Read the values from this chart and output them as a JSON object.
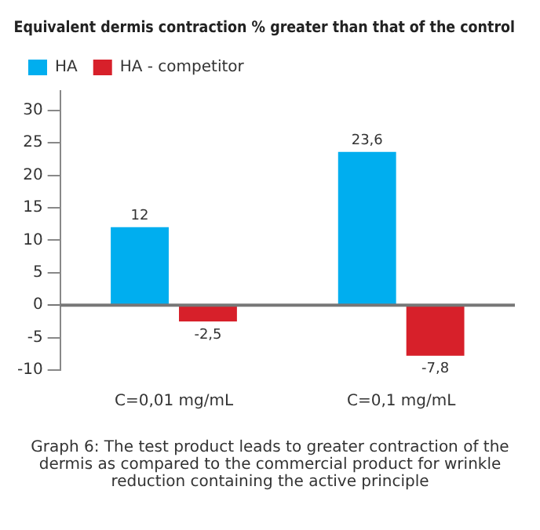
{
  "chart_data": {
    "type": "bar",
    "title": "Equivalent dermis contraction % greater than that of the control",
    "categories": [
      "C=0,01 mg/mL",
      "C=0,1 mg/mL"
    ],
    "series": [
      {
        "name": "HA",
        "color": "#00aeef",
        "values": [
          12,
          23.6
        ],
        "value_labels": [
          "12",
          "23,6"
        ]
      },
      {
        "name": "HA - competitor",
        "color": "#d7202a",
        "values": [
          -2.5,
          -7.8
        ],
        "value_labels": [
          "-2,5",
          "-7,8"
        ]
      }
    ],
    "ref_lines": [
      {
        "axis": "y",
        "value": 0,
        "color": "#777777"
      }
    ],
    "ylim": [
      -10,
      33
    ],
    "yticks": [
      -10,
      -5,
      0,
      5,
      10,
      15,
      20,
      25,
      30
    ],
    "grid": false,
    "legend": "top left",
    "annotations": [
      "Graph 6: The test product leads to greater contraction of the dermis as compared to the commercial product for wrinkle reduction containing the active principle"
    ]
  }
}
